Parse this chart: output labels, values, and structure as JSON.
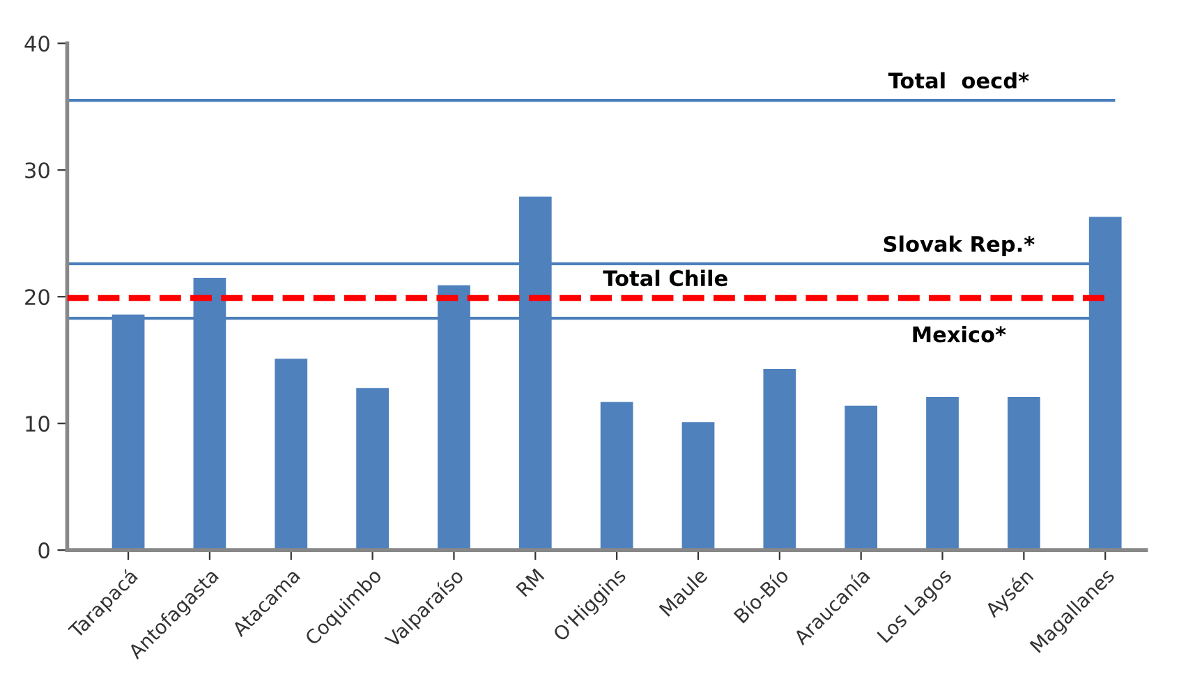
{
  "chart_data": {
    "type": "bar",
    "categories": [
      "Tarapacá",
      "Antofagasta",
      "Atacama",
      "Coquimbo",
      "Valparaíso",
      "RM",
      "O'Higgins",
      "Maule",
      "Bío-Bío",
      "Araucanía",
      "Los Lagos",
      "Aysén",
      "Magallanes"
    ],
    "values": [
      18.6,
      21.5,
      15.1,
      12.8,
      20.9,
      27.9,
      11.7,
      10.1,
      14.3,
      11.4,
      12.1,
      12.1,
      26.3
    ],
    "color": "#4f81bd",
    "ylim": [
      0,
      40
    ],
    "yticks": [
      0,
      10,
      20,
      30,
      40
    ],
    "grid": false,
    "ref_lines": [
      {
        "axis": "y",
        "value": 35.5,
        "label": "Total  oecd*",
        "color": "#4a7ebb",
        "line_style": "solid"
      },
      {
        "axis": "y",
        "value": 22.6,
        "label": "Slovak Rep.*",
        "color": "#4a7ebb",
        "line_style": "solid"
      },
      {
        "axis": "y",
        "value": 19.9,
        "label": "Total Chile",
        "color": "#ff0000",
        "line_style": "dashed"
      },
      {
        "axis": "y",
        "value": 18.3,
        "label": "Mexico*",
        "color": "#4a7ebb",
        "line_style": "solid"
      }
    ]
  }
}
